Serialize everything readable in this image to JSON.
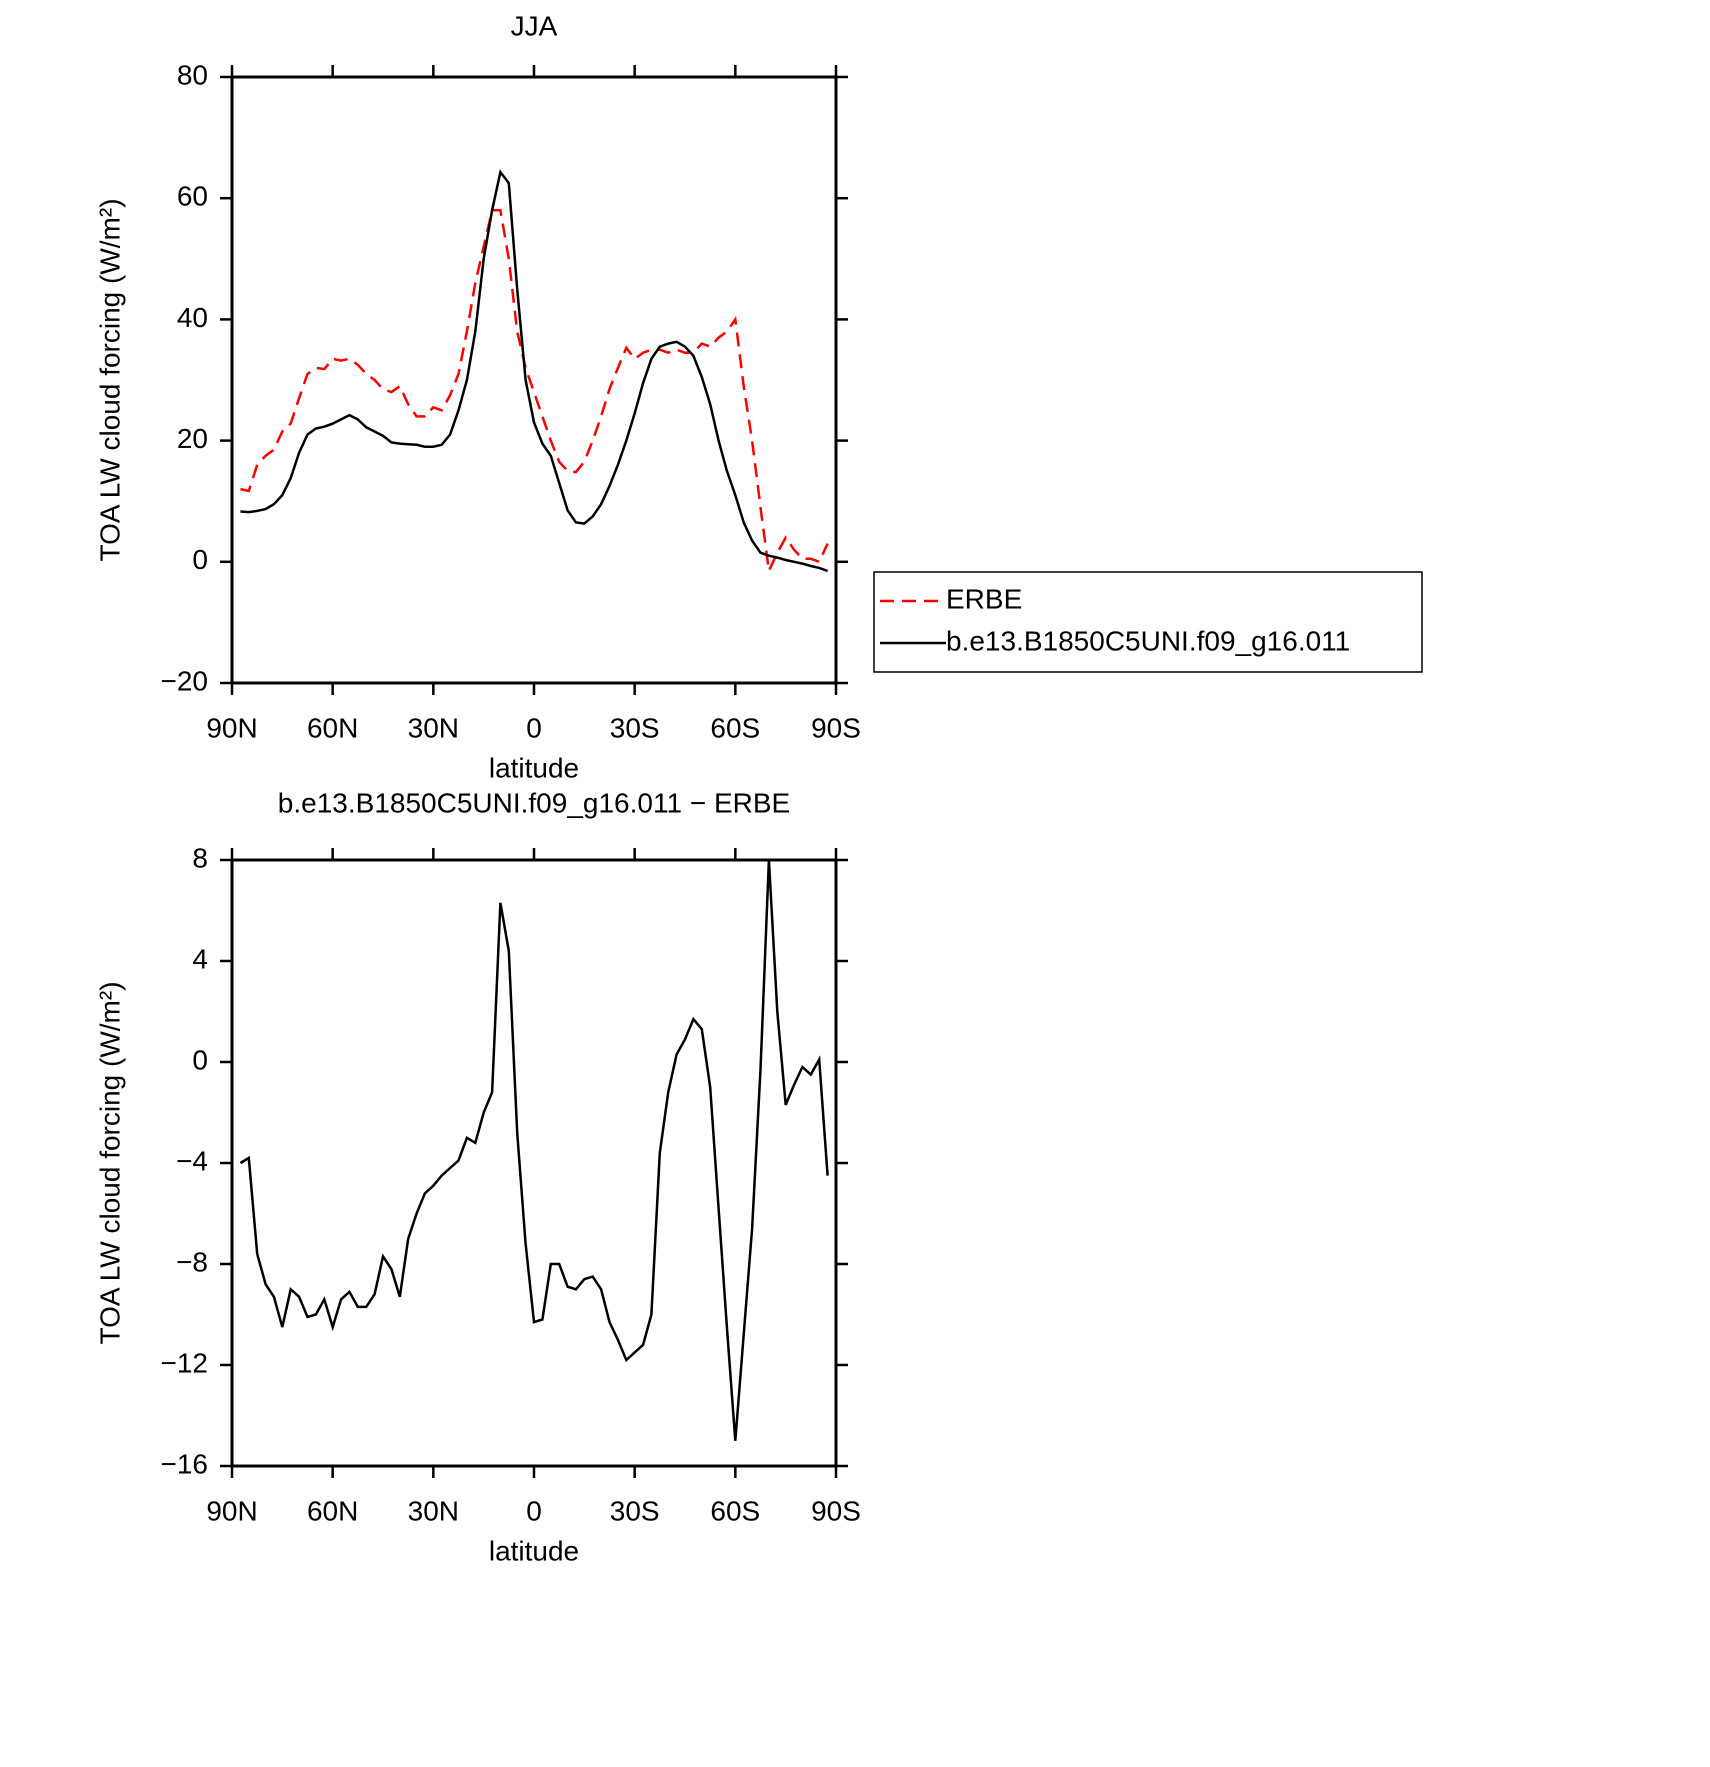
{
  "chart_data": [
    {
      "type": "line",
      "title": "JJA",
      "x_label": "latitude",
      "y_label": "TOA LW cloud forcing (W/m²)",
      "x": [
        87.5,
        85,
        82.5,
        80,
        77.5,
        75,
        72.5,
        70,
        67.5,
        65,
        62.5,
        60,
        57.5,
        55,
        52.5,
        50,
        47.5,
        45,
        42.5,
        40,
        37.5,
        35,
        32.5,
        30,
        27.5,
        25,
        22.5,
        20,
        17.5,
        15,
        12.5,
        10,
        7.5,
        5,
        2.5,
        0,
        -2.5,
        -5,
        -7.5,
        -10,
        -12.5,
        -15,
        -17.5,
        -20,
        -22.5,
        -25,
        -27.5,
        -30,
        -32.5,
        -35,
        -37.5,
        -40,
        -42.5,
        -45,
        -47.5,
        -50,
        -52.5,
        -55,
        -57.5,
        -60,
        -62.5,
        -65,
        -67.5,
        -70,
        -72.5,
        -75,
        -77.5,
        -80,
        -82.5,
        -85,
        -87.5
      ],
      "xlim": [
        90,
        -90
      ],
      "xticks": [
        {
          "value": 90,
          "label": "90N"
        },
        {
          "value": 60,
          "label": "60N"
        },
        {
          "value": 30,
          "label": "30N"
        },
        0,
        {
          "value": -30,
          "label": "30S"
        },
        {
          "value": -60,
          "label": "60S"
        },
        {
          "value": -90,
          "label": "90S"
        }
      ],
      "ylim": [
        -20,
        80
      ],
      "yticks": [
        {
          "value": -20,
          "label": "−20"
        },
        0,
        20,
        40,
        60,
        80
      ],
      "legend": "right",
      "series": [
        {
          "name": "ERBE",
          "color": "#ff0000",
          "line_style": "dashed",
          "values": [
            12,
            11.7,
            16,
            17.5,
            18.5,
            21.5,
            22.8,
            27,
            31,
            32,
            31.8,
            33.5,
            33.2,
            33.5,
            32.5,
            31,
            30,
            28.5,
            28,
            29,
            26,
            24,
            24,
            25.5,
            25,
            27.5,
            31,
            38,
            46,
            52,
            58,
            58,
            50,
            38,
            32,
            28,
            24,
            20,
            16.5,
            15,
            14.8,
            16.5,
            20,
            24,
            28.5,
            32,
            35.3,
            33.5,
            34.5,
            35,
            35,
            34.5,
            35,
            34.5,
            34.5,
            36,
            35.5,
            37,
            38,
            40,
            29,
            20,
            9,
            -1.5,
            1.5,
            4,
            2,
            0.5,
            0.5,
            0,
            3
          ]
        },
        {
          "name": "b.e13.B1850C5UNI.f09_g16.011",
          "color": "#000000",
          "line_style": "solid",
          "values": [
            8.3,
            8.2,
            8.4,
            8.7,
            9.5,
            11,
            13.8,
            18,
            21,
            22,
            22.3,
            22.8,
            23.5,
            24.2,
            23.5,
            22.2,
            21.5,
            20.8,
            19.7,
            19.5,
            19.4,
            19.3,
            19,
            19,
            19.3,
            21,
            25,
            30,
            38,
            50,
            58,
            64.3,
            62.5,
            45,
            30,
            23,
            19.5,
            17.5,
            13,
            8.5,
            6.5,
            6.3,
            7.5,
            9.5,
            12.5,
            16,
            20,
            24.5,
            29.5,
            33.5,
            35.5,
            36,
            36.3,
            35.5,
            34,
            30.5,
            26,
            20,
            15,
            11,
            6.5,
            3.5,
            1.5,
            1,
            0.7,
            0.3,
            0,
            -0.3,
            -0.7,
            -1,
            -1.5
          ]
        }
      ]
    },
    {
      "type": "line",
      "title": "b.e13.B1850C5UNI.f09_g16.011 − ERBE",
      "x_label": "latitude",
      "y_label": "TOA LW cloud forcing (W/m²)",
      "x": [
        87.5,
        85,
        82.5,
        80,
        77.5,
        75,
        72.5,
        70,
        67.5,
        65,
        62.5,
        60,
        57.5,
        55,
        52.5,
        50,
        47.5,
        45,
        42.5,
        40,
        37.5,
        35,
        32.5,
        30,
        27.5,
        25,
        22.5,
        20,
        17.5,
        15,
        12.5,
        10,
        7.5,
        5,
        2.5,
        0,
        -2.5,
        -5,
        -7.5,
        -10,
        -12.5,
        -15,
        -17.5,
        -20,
        -22.5,
        -25,
        -27.5,
        -30,
        -32.5,
        -35,
        -37.5,
        -40,
        -42.5,
        -45,
        -47.5,
        -50,
        -52.5,
        -55,
        -57.5,
        -60,
        -62.5,
        -65,
        -67.5,
        -70,
        -72.5,
        -75,
        -77.5,
        -80,
        -82.5,
        -85,
        -87.5
      ],
      "xlim": [
        90,
        -90
      ],
      "xticks": [
        {
          "value": 90,
          "label": "90N"
        },
        {
          "value": 60,
          "label": "60N"
        },
        {
          "value": 30,
          "label": "30N"
        },
        0,
        {
          "value": -30,
          "label": "30S"
        },
        {
          "value": -60,
          "label": "60S"
        },
        {
          "value": -90,
          "label": "90S"
        }
      ],
      "ylim": [
        -16,
        8
      ],
      "yticks": [
        {
          "value": -16,
          "label": "−16"
        },
        {
          "value": -12,
          "label": "−12"
        },
        {
          "value": -8,
          "label": "−8"
        },
        {
          "value": -4,
          "label": "−4"
        },
        0,
        4,
        8
      ],
      "series": [
        {
          "color": "#000000",
          "line_style": "solid",
          "values": [
            -4,
            -3.8,
            -7.6,
            -8.8,
            -9.3,
            -10.5,
            -9,
            -9.3,
            -10.1,
            -10,
            -9.4,
            -10.5,
            -9.4,
            -9.1,
            -9.7,
            -9.7,
            -9.2,
            -7.7,
            -8.2,
            -9.3,
            -7,
            -6,
            -5.2,
            -4.9,
            -4.5,
            -4.2,
            -3.9,
            -3,
            -3.2,
            -2,
            -1.2,
            6.3,
            4.4,
            -2.8,
            -7.2,
            -10.3,
            -10.2,
            -8,
            -8,
            -8.9,
            -9,
            -8.6,
            -8.5,
            -9,
            -10.3,
            -11,
            -11.8,
            -11.5,
            -11.2,
            -10,
            -3.6,
            -1.2,
            0.3,
            0.9,
            1.7,
            1.3,
            -1,
            -5.8,
            -10.5,
            -15,
            -10.8,
            -6.6,
            -0.3,
            8,
            2,
            -1.7,
            -0.9,
            -0.2,
            -0.5,
            0.1,
            -4.5
          ]
        }
      ]
    }
  ]
}
